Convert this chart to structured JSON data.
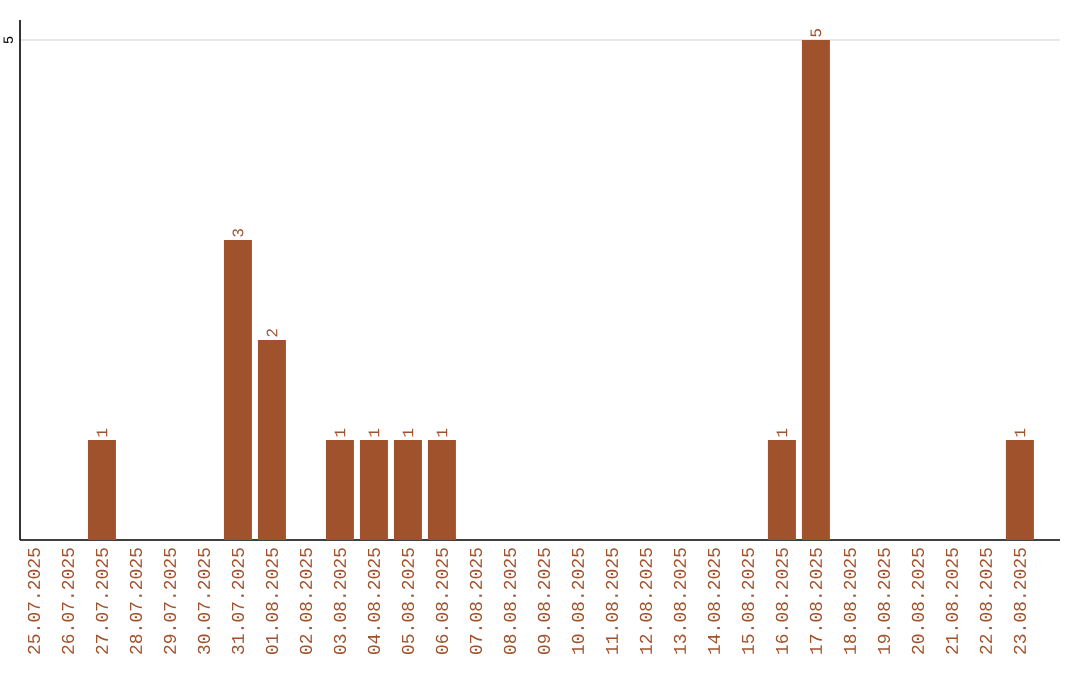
{
  "chart_data": {
    "type": "bar",
    "categories": [
      "25.07.2025",
      "26.07.2025",
      "27.07.2025",
      "28.07.2025",
      "29.07.2025",
      "30.07.2025",
      "31.07.2025",
      "01.08.2025",
      "02.08.2025",
      "03.08.2025",
      "04.08.2025",
      "05.08.2025",
      "06.08.2025",
      "07.08.2025",
      "08.08.2025",
      "09.08.2025",
      "10.08.2025",
      "11.08.2025",
      "12.08.2025",
      "13.08.2025",
      "14.08.2025",
      "15.08.2025",
      "16.08.2025",
      "17.08.2025",
      "18.08.2025",
      "19.08.2025",
      "20.08.2025",
      "21.08.2025",
      "22.08.2025",
      "23.08.2025"
    ],
    "values": [
      0,
      0,
      1,
      0,
      0,
      0,
      3,
      2,
      0,
      1,
      1,
      1,
      1,
      0,
      0,
      0,
      0,
      0,
      0,
      0,
      0,
      0,
      1,
      5,
      0,
      0,
      0,
      0,
      0,
      1
    ],
    "value_labels": [
      null,
      null,
      "1",
      null,
      null,
      null,
      "3",
      "2",
      null,
      "1",
      "1",
      "1",
      "1",
      null,
      null,
      null,
      null,
      null,
      null,
      null,
      null,
      null,
      "1",
      "5",
      null,
      null,
      null,
      null,
      null,
      "1"
    ],
    "color": "#a0522d",
    "ylim": [
      0,
      5.2
    ],
    "yticks": [
      5
    ],
    "grid": "y"
  }
}
